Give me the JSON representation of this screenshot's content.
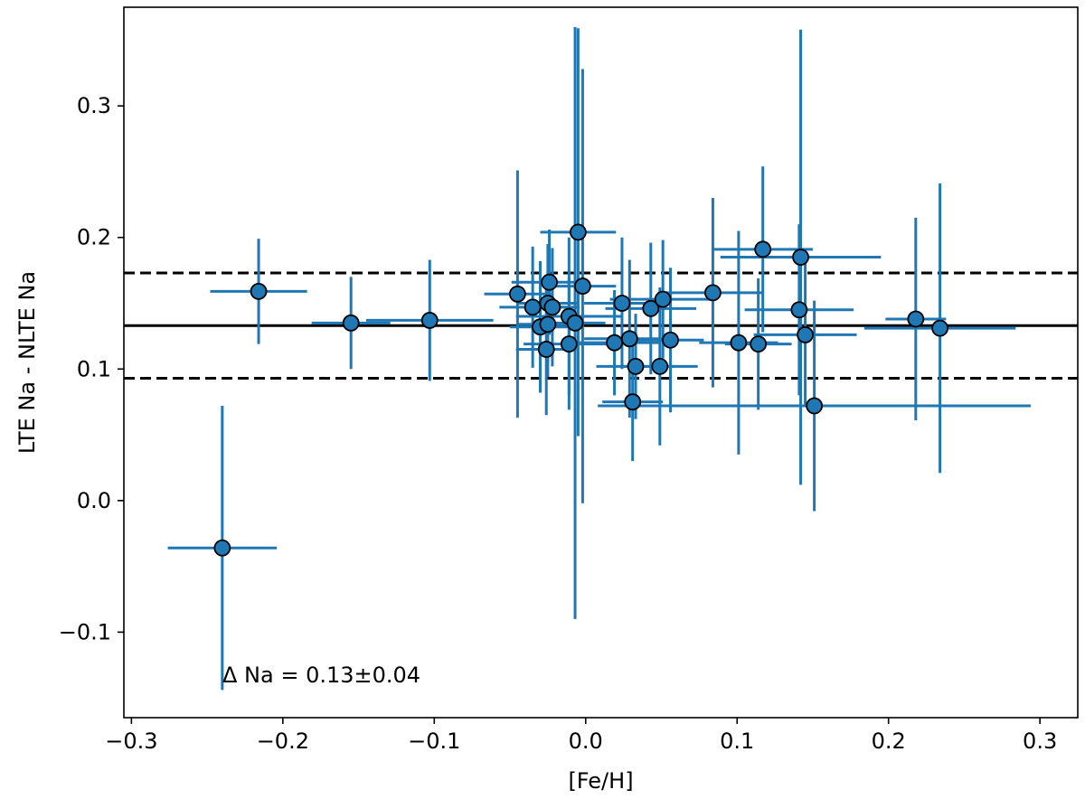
{
  "chart_data": {
    "type": "scatter",
    "xlabel": "[Fe/H]",
    "ylabel": "LTE Na - NLTE Na",
    "xlim": [
      -0.305,
      0.325
    ],
    "ylim": [
      -0.165,
      0.375
    ],
    "xticks": [
      -0.3,
      -0.2,
      -0.1,
      0.0,
      0.1,
      0.2,
      0.3
    ],
    "xtick_labels": [
      "−0.3",
      "−0.2",
      "−0.1",
      "0.0",
      "0.1",
      "0.2",
      "0.3"
    ],
    "yticks": [
      -0.1,
      0.0,
      0.1,
      0.2,
      0.3
    ],
    "ytick_labels": [
      "−0.1",
      "0.0",
      "0.1",
      "0.2",
      "0.3"
    ],
    "annotation": "Δ Na = 0.13±0.04",
    "hlines": [
      {
        "y": 0.133,
        "style": "solid"
      },
      {
        "y": 0.173,
        "style": "dashed"
      },
      {
        "y": 0.093,
        "style": "dashed"
      }
    ],
    "colors": {
      "errorbar": "#1f77b4",
      "marker_fill": "#1f77b4",
      "marker_edge": "#000000",
      "lines": "#000000"
    },
    "points": [
      {
        "x": -0.24,
        "y": -0.036,
        "xerr": 0.036,
        "yerr": 0.108
      },
      {
        "x": -0.216,
        "y": 0.159,
        "xerr": 0.032,
        "yerr": 0.04
      },
      {
        "x": -0.155,
        "y": 0.135,
        "xerr": 0.026,
        "yerr": 0.035
      },
      {
        "x": -0.103,
        "y": 0.137,
        "xerr": 0.042,
        "yerr": 0.046
      },
      {
        "x": -0.045,
        "y": 0.157,
        "xerr": 0.022,
        "yerr": 0.094
      },
      {
        "x": -0.035,
        "y": 0.147,
        "xerr": 0.022,
        "yerr": 0.046
      },
      {
        "x": -0.03,
        "y": 0.132,
        "xerr": 0.02,
        "yerr": 0.05
      },
      {
        "x": -0.026,
        "y": 0.115,
        "xerr": 0.02,
        "yerr": 0.05
      },
      {
        "x": -0.025,
        "y": 0.134,
        "xerr": 0.02,
        "yerr": 0.04
      },
      {
        "x": -0.025,
        "y": 0.15,
        "xerr": 0.02,
        "yerr": 0.045
      },
      {
        "x": -0.024,
        "y": 0.166,
        "xerr": 0.025,
        "yerr": 0.04
      },
      {
        "x": -0.022,
        "y": 0.147,
        "xerr": 0.018,
        "yerr": 0.045
      },
      {
        "x": -0.011,
        "y": 0.14,
        "xerr": 0.035,
        "yerr": 0.06
      },
      {
        "x": -0.011,
        "y": 0.119,
        "xerr": 0.03,
        "yerr": 0.05
      },
      {
        "x": -0.007,
        "y": 0.135,
        "xerr": 0.02,
        "yerr": 0.225
      },
      {
        "x": -0.005,
        "y": 0.204,
        "xerr": 0.025,
        "yerr": 0.155
      },
      {
        "x": -0.002,
        "y": 0.163,
        "xerr": 0.022,
        "yerr": 0.165
      },
      {
        "x": 0.019,
        "y": 0.12,
        "xerr": 0.03,
        "yerr": 0.04
      },
      {
        "x": 0.024,
        "y": 0.15,
        "xerr": 0.025,
        "yerr": 0.05
      },
      {
        "x": 0.029,
        "y": 0.123,
        "xerr": 0.03,
        "yerr": 0.06
      },
      {
        "x": 0.031,
        "y": 0.075,
        "xerr": 0.02,
        "yerr": 0.045
      },
      {
        "x": 0.033,
        "y": 0.102,
        "xerr": 0.026,
        "yerr": 0.04
      },
      {
        "x": 0.043,
        "y": 0.146,
        "xerr": 0.03,
        "yerr": 0.05
      },
      {
        "x": 0.049,
        "y": 0.102,
        "xerr": 0.025,
        "yerr": 0.06
      },
      {
        "x": 0.051,
        "y": 0.153,
        "xerr": 0.035,
        "yerr": 0.045
      },
      {
        "x": 0.056,
        "y": 0.122,
        "xerr": 0.022,
        "yerr": 0.055
      },
      {
        "x": 0.084,
        "y": 0.158,
        "xerr": 0.033,
        "yerr": 0.072
      },
      {
        "x": 0.101,
        "y": 0.12,
        "xerr": 0.026,
        "yerr": 0.085
      },
      {
        "x": 0.114,
        "y": 0.119,
        "xerr": 0.022,
        "yerr": 0.05
      },
      {
        "x": 0.117,
        "y": 0.191,
        "xerr": 0.033,
        "yerr": 0.063
      },
      {
        "x": 0.141,
        "y": 0.145,
        "xerr": 0.036,
        "yerr": 0.065
      },
      {
        "x": 0.142,
        "y": 0.185,
        "xerr": 0.053,
        "yerr": 0.173
      },
      {
        "x": 0.145,
        "y": 0.126,
        "xerr": 0.034,
        "yerr": 0.055
      },
      {
        "x": 0.151,
        "y": 0.072,
        "xerr": 0.143,
        "yerr": 0.08
      },
      {
        "x": 0.218,
        "y": 0.138,
        "xerr": 0.02,
        "yerr": 0.077
      },
      {
        "x": 0.234,
        "y": 0.131,
        "xerr": 0.05,
        "yerr": 0.11
      }
    ]
  }
}
